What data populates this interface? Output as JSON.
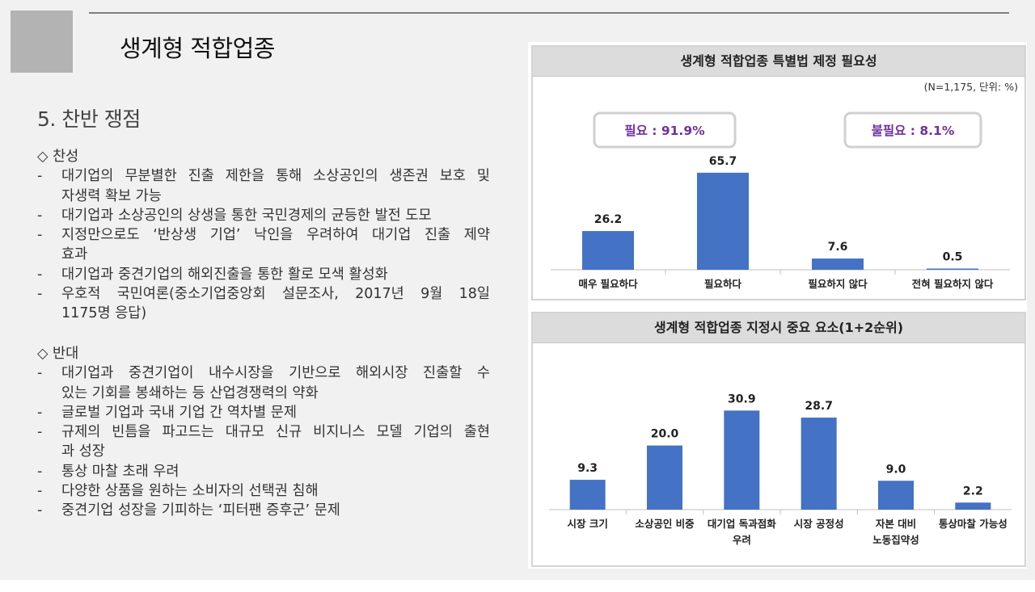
{
  "slide_title": "생계형 적합업종",
  "section_heading": "5. 찬반 쟁점",
  "pro": {
    "header": "◇ 찬성",
    "items": [
      [
        "대기업의 무분별한 진출 제한을 통해 소상공인의 생존권 보호 및",
        "자생력 확보 가능"
      ],
      [
        "대기업과 소상공인의 상생을 통한 국민경제의 균등한 발전 도모"
      ],
      [
        "지정만으로도 ‘반상생 기업’ 낙인을 우려하여 대기업 진출 제약",
        "효과"
      ],
      [
        "대기업과 중견기업의 해외진출을 통한 활로 모색 활성화"
      ],
      [
        "우호적 국민여론(중소기업중앙회 설문조사, 2017년 9월 18일",
        "1175명 응답)"
      ]
    ]
  },
  "con": {
    "header": "◇ 반대",
    "items": [
      [
        "대기업과 중견기업이 내수시장을 기반으로 해외시장 진출할 수",
        "있는 기회를 봉쇄하는 등 산업경쟁력의 약화"
      ],
      [
        "글로벌 기업과 국내 기업 간 역차별 문제"
      ],
      [
        "규제의 빈틈을 파고드는 대규모 신규 비지니스 모델 기업의 출현",
        "과 성장"
      ],
      [
        "통상 마찰 초래 우려"
      ],
      [
        "다양한 상품을 원하는 소비자의 선택권 침해"
      ],
      [
        "중견기업 성장을 기피하는 ‘피터팬 증후군’ 문제"
      ]
    ]
  },
  "bullet_dash": "-",
  "chart_data": [
    {
      "type": "bar",
      "title": "생계형 적합업종 특별법 제정 필요성",
      "note": "(N=1,175, 단위: %)",
      "callouts": [
        {
          "text": "필요 : 91.9%",
          "color": "#7030a0"
        },
        {
          "text": "불필요 : 8.1%",
          "color": "#7030a0"
        }
      ],
      "categories": [
        "매우 필요하다",
        "필요하다",
        "필요하지 않다",
        "전혀 필요하지 않다"
      ],
      "values": [
        26.2,
        65.7,
        7.6,
        0.5
      ],
      "labels": [
        "26.2",
        "65.7",
        "7.6",
        "0.5"
      ],
      "ylim": [
        0,
        70
      ],
      "bar_color": "#4472c4",
      "grid": false
    },
    {
      "type": "bar",
      "title": "생계형 적합업종 지정시 중요 요소(1+2순위)",
      "categories": [
        [
          "시장 크기"
        ],
        [
          "소상공인 비중"
        ],
        [
          "대기업 독과점화",
          "우려"
        ],
        [
          "시장 공정성"
        ],
        [
          "자본 대비",
          "노동집약성"
        ],
        [
          "통상마찰 가능성"
        ]
      ],
      "values": [
        9.3,
        20.0,
        30.9,
        28.7,
        9.0,
        2.2
      ],
      "labels": [
        "9.3",
        "20.0",
        "30.9",
        "28.7",
        "9.0",
        "2.2"
      ],
      "ylim": [
        0,
        33
      ],
      "bar_color": "#4472c4",
      "grid": false
    }
  ]
}
